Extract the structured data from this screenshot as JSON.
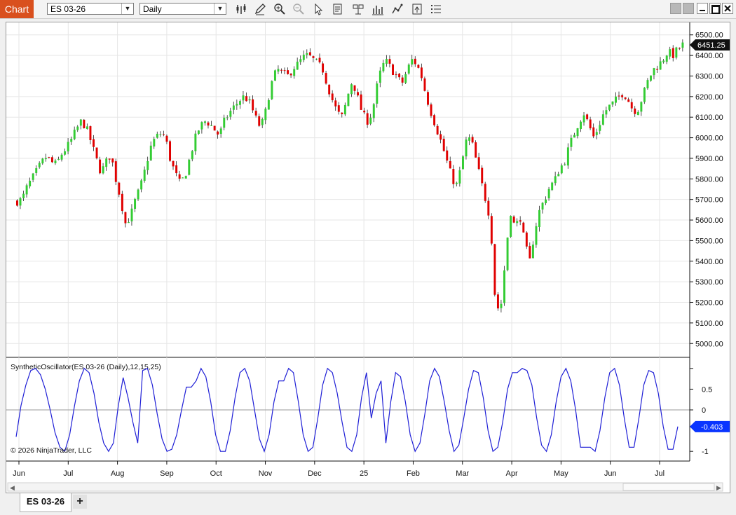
{
  "app": {
    "title": "Chart"
  },
  "toolbar": {
    "instrument": "ES 03-26",
    "interval": "Daily",
    "tools": [
      "bar-type-icon",
      "draw-pencil-icon",
      "zoom-in-icon",
      "zoom-out-icon",
      "pointer-icon",
      "data-box-icon",
      "properties-icon",
      "indicators-icon",
      "strategies-icon",
      "chart-trader-icon",
      "more-icon"
    ]
  },
  "window_controls": [
    "min-gray-icon",
    "restore-gray-icon",
    "minimize-icon",
    "maximize-icon",
    "close-icon"
  ],
  "chart_data": [
    {
      "type": "candlestick",
      "instrument": "ES 03-26",
      "interval": "Daily",
      "last_price_label": "6451.25",
      "ylim": [
        4960,
        6540
      ],
      "y_ticks": [
        5000,
        5100,
        5200,
        5300,
        5400,
        5500,
        5600,
        5700,
        5800,
        5900,
        6000,
        6100,
        6200,
        6300,
        6400,
        6500
      ],
      "y_tick_labels": [
        "5000.00",
        "5100.00",
        "5200.00",
        "5300.00",
        "5400.00",
        "5500.00",
        "5600.00",
        "5700.00",
        "5800.00",
        "5900.00",
        "6000.00",
        "6100.00",
        "6200.00",
        "6300.00",
        "6400.00",
        "6500.00"
      ],
      "x_labels": [
        "Jun",
        "Jul",
        "Aug",
        "Sep",
        "Oct",
        "Nov",
        "Dec",
        "25",
        "Feb",
        "Mar",
        "Apr",
        "May",
        "Jun",
        "Jul"
      ],
      "up_color": "#33cc33",
      "down_color": "#e00000",
      "grid": true,
      "close_path": [
        5690,
        5700,
        5760,
        5800,
        5840,
        5880,
        5910,
        5880,
        5870,
        5920,
        5950,
        5990,
        6040,
        6080,
        6050,
        5980,
        5900,
        5830,
        5880,
        5920,
        5800,
        5700,
        5580,
        5620,
        5700,
        5760,
        5850,
        5950,
        6000,
        6020,
        6010,
        5900,
        5830,
        5780,
        5810,
        5900,
        5990,
        6050,
        6080,
        6070,
        6040,
        6010,
        6080,
        6120,
        6150,
        6180,
        6200,
        6180,
        6120,
        6060,
        6080,
        6200,
        6300,
        6330,
        6310,
        6300,
        6340,
        6360,
        6390,
        6400,
        6380,
        6360,
        6330,
        6250,
        6180,
        6120,
        6100,
        6200,
        6280,
        6200,
        6120,
        6080,
        6120,
        6250,
        6350,
        6370,
        6330,
        6300,
        6260,
        6320,
        6380,
        6360,
        6300,
        6200,
        6120,
        6050,
        5980,
        5900,
        5820,
        5760,
        5850,
        5980,
        6000,
        5900,
        5800,
        5700,
        5600,
        5200,
        5150,
        5400,
        5650,
        5560,
        5620,
        5480,
        5400,
        5550,
        5650,
        5700,
        5760,
        5790,
        5850,
        5880,
        5960,
        6020,
        6080,
        6120,
        6060,
        6000,
        6060,
        6120,
        6150,
        6170,
        6200,
        6220,
        6180,
        6130,
        6140,
        6210,
        6280,
        6330,
        6350,
        6380,
        6420,
        6400,
        6430,
        6451.25
      ]
    },
    {
      "type": "line",
      "title": "SyntheticOscillator(ES 03-26 (Daily),12,15,25)",
      "last_value_label": "-0.403",
      "ylim": [
        -1.2,
        1.2
      ],
      "y_ticks": [
        -1,
        0,
        0.5
      ],
      "y_tick_labels": [
        "-1",
        "0",
        "0.5"
      ],
      "line_color": "#1f1fd6",
      "zero_line": true,
      "values": [
        -0.65,
        0.1,
        0.6,
        0.95,
        1.0,
        0.85,
        0.5,
        0.0,
        -0.55,
        -0.9,
        -1.0,
        -0.6,
        0.1,
        0.7,
        1.0,
        0.9,
        0.4,
        -0.3,
        -0.8,
        -1.0,
        -0.8,
        0.1,
        0.78,
        0.3,
        -0.3,
        -0.8,
        0.95,
        1.0,
        0.6,
        -0.1,
        -0.7,
        -1.0,
        -0.95,
        -0.6,
        0.0,
        0.55,
        0.55,
        0.7,
        1.0,
        0.8,
        0.2,
        -0.6,
        -1.0,
        -1.0,
        -0.5,
        0.3,
        0.9,
        1.0,
        0.7,
        0.0,
        -0.7,
        -1.0,
        -0.6,
        0.2,
        0.7,
        0.7,
        1.0,
        0.9,
        0.2,
        -0.6,
        -1.0,
        -0.9,
        -0.2,
        0.6,
        1.0,
        0.9,
        0.4,
        -0.3,
        -0.9,
        -1.0,
        -0.6,
        0.3,
        0.9,
        -0.2,
        0.4,
        0.7,
        -0.8,
        0.2,
        0.9,
        0.8,
        0.2,
        -0.6,
        -1.0,
        -0.8,
        -0.1,
        0.7,
        1.0,
        0.8,
        0.2,
        -0.5,
        -1.0,
        -0.85,
        -0.2,
        0.5,
        0.95,
        0.9,
        0.3,
        -0.5,
        -1.0,
        -0.9,
        -0.3,
        0.5,
        0.9,
        0.9,
        1.0,
        0.95,
        0.6,
        -0.2,
        -0.85,
        -1.0,
        -0.6,
        0.2,
        0.8,
        1.0,
        0.7,
        0.0,
        -0.9,
        -0.9,
        -0.9,
        -1.0,
        -0.5,
        0.3,
        0.9,
        1.0,
        0.6,
        -0.2,
        -0.9,
        -0.9,
        -0.2,
        0.6,
        0.95,
        0.9,
        0.4,
        -0.4,
        -0.95,
        -0.95,
        -0.403
      ]
    }
  ],
  "copyright": "© 2026 NinjaTrader, LLC",
  "tabs": [
    {
      "label": "ES 03-26"
    }
  ],
  "add_tab_label": "+"
}
